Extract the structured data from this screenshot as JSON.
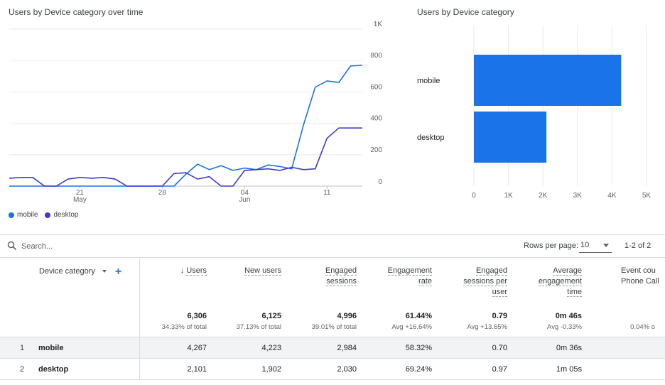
{
  "line_chart": {
    "title": "Users by Device category over time",
    "y_ticks": [
      "0",
      "200",
      "400",
      "600",
      "800",
      "1K"
    ],
    "x_ticks": [
      {
        "day": "21",
        "month": "May"
      },
      {
        "day": "28",
        "month": ""
      },
      {
        "day": "04",
        "month": "Jun"
      },
      {
        "day": "11",
        "month": ""
      }
    ],
    "legend": [
      {
        "name": "mobile",
        "color": "#1a73e8"
      },
      {
        "name": "desktop",
        "color": "#3f3acd"
      }
    ]
  },
  "bar_chart": {
    "title": "Users by Device category",
    "x_ticks": [
      "0",
      "1K",
      "2K",
      "3K",
      "4K",
      "5K"
    ],
    "bar_color": "#1a73e8"
  },
  "chart_data": [
    {
      "type": "line",
      "title": "Users by Device category over time",
      "xlabel": "",
      "ylabel": "",
      "ylim": [
        0,
        1000
      ],
      "x": [
        "May 15",
        "May 16",
        "May 17",
        "May 18",
        "May 19",
        "May 20",
        "May 21",
        "May 22",
        "May 23",
        "May 24",
        "May 25",
        "May 26",
        "May 27",
        "May 28",
        "May 29",
        "May 30",
        "May 31",
        "Jun 1",
        "Jun 2",
        "Jun 3",
        "Jun 4",
        "Jun 5",
        "Jun 6",
        "Jun 7",
        "Jun 8",
        "Jun 9",
        "Jun 10",
        "Jun 11",
        "Jun 12",
        "Jun 13",
        "Jun 14"
      ],
      "series": [
        {
          "name": "mobile",
          "values": [
            0,
            0,
            0,
            0,
            0,
            0,
            0,
            0,
            0,
            0,
            0,
            0,
            0,
            0,
            0,
            75,
            140,
            105,
            130,
            100,
            115,
            105,
            135,
            125,
            110,
            390,
            630,
            670,
            660,
            765,
            770
          ]
        },
        {
          "name": "desktop",
          "values": [
            50,
            55,
            55,
            0,
            0,
            45,
            55,
            50,
            55,
            45,
            0,
            0,
            0,
            0,
            80,
            85,
            45,
            60,
            0,
            0,
            100,
            105,
            110,
            100,
            120,
            105,
            110,
            305,
            370,
            370,
            370
          ]
        }
      ]
    },
    {
      "type": "bar",
      "title": "Users by Device category",
      "categories": [
        "mobile",
        "desktop"
      ],
      "values": [
        4267,
        2101
      ],
      "xlim": [
        0,
        5000
      ],
      "orientation": "horizontal"
    }
  ],
  "search": {
    "placeholder": "Search..."
  },
  "pagination": {
    "rows_label": "Rows per page:",
    "rows_value": "10",
    "range": "1-2 of 2"
  },
  "table": {
    "dimension_header": "Device category",
    "columns": [
      {
        "lines": [
          "Users"
        ],
        "sorted": true,
        "total": "6,306",
        "sub": "34.33% of total"
      },
      {
        "lines": [
          "New users"
        ],
        "total": "6,125",
        "sub": "37.13% of total"
      },
      {
        "lines": [
          "Engaged",
          "sessions"
        ],
        "total": "4,996",
        "sub": "39.01% of total"
      },
      {
        "lines": [
          "Engagement",
          "rate"
        ],
        "total": "61.44%",
        "sub": "Avg +16.64%"
      },
      {
        "lines": [
          "Engaged",
          "sessions per",
          "user"
        ],
        "total": "0.79",
        "sub": "Avg +13.65%"
      },
      {
        "lines": [
          "Average",
          "engagement",
          "time"
        ],
        "total": "0m 46s",
        "sub": "Avg -0.33%"
      },
      {
        "lines": [
          "Event cou",
          "Phone Call"
        ],
        "total": "",
        "sub": "0.04% o"
      }
    ],
    "rows": [
      {
        "index": "1",
        "name": "mobile",
        "cells": [
          "4,267",
          "4,223",
          "2,984",
          "58.32%",
          "0.70",
          "0m 36s",
          ""
        ]
      },
      {
        "index": "2",
        "name": "desktop",
        "cells": [
          "2,101",
          "1,902",
          "2,030",
          "69.24%",
          "0.97",
          "1m 05s",
          ""
        ]
      }
    ]
  }
}
